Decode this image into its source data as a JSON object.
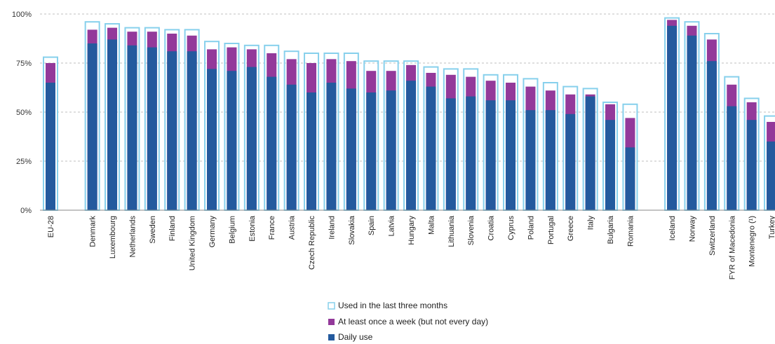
{
  "chart_data": {
    "type": "bar",
    "title": "",
    "xlabel": "",
    "ylabel": "",
    "ylim": [
      0,
      100
    ],
    "yticks": [
      0,
      25,
      50,
      75,
      100
    ],
    "ytick_labels": [
      "0%",
      "25%",
      "50%",
      "75%",
      "100%"
    ],
    "grid": true,
    "legend_position": "bottom-center",
    "colors": {
      "three_months_outline": "#87d0ec",
      "weekly": "#93399a",
      "daily": "#245a9e",
      "grid": "#bfbfbf",
      "axis": "#888888"
    },
    "groups": [
      [
        "EU-28"
      ],
      [
        "Denmark",
        "Luxembourg",
        "Netherlands",
        "Sweden",
        "Finland",
        "United Kingdom",
        "Germany",
        "Belgium",
        "Estonia",
        "France",
        "Austria",
        "Czech Republic",
        "Ireland",
        "Slovakia",
        "Spain",
        "Latvia",
        "Hungary",
        "Malta",
        "Lithuania",
        "Slovenia",
        "Croatia",
        "Cyprus",
        "Poland",
        "Portugal",
        "Greece",
        "Italy",
        "Bulgaria",
        "Romania"
      ],
      [
        "Iceland",
        "Norway",
        "Switzerland",
        "FYR of Macedonia",
        "Montenegro (¹)",
        "Turkey"
      ]
    ],
    "categories": [
      "EU-28",
      "Denmark",
      "Luxembourg",
      "Netherlands",
      "Sweden",
      "Finland",
      "United Kingdom",
      "Germany",
      "Belgium",
      "Estonia",
      "France",
      "Austria",
      "Czech Republic",
      "Ireland",
      "Slovakia",
      "Spain",
      "Latvia",
      "Hungary",
      "Malta",
      "Lithuania",
      "Slovenia",
      "Croatia",
      "Cyprus",
      "Poland",
      "Portugal",
      "Greece",
      "Italy",
      "Bulgaria",
      "Romania",
      "Iceland",
      "Norway",
      "Switzerland",
      "FYR of Macedonia",
      "Montenegro (¹)",
      "Turkey"
    ],
    "series": [
      {
        "name": "Used in the last three months",
        "style": "outline",
        "values": [
          78,
          96,
          95,
          93,
          93,
          92,
          92,
          86,
          85,
          84,
          84,
          81,
          80,
          80,
          80,
          76,
          76,
          76,
          73,
          72,
          72,
          69,
          69,
          67,
          65,
          63,
          62,
          55,
          54,
          98,
          96,
          90,
          68,
          57,
          48
        ]
      },
      {
        "name": "At least once a week (but not every day)",
        "style": "fill",
        "values": [
          75,
          92,
          93,
          91,
          91,
          90,
          89,
          82,
          83,
          82,
          80,
          77,
          75,
          77,
          76,
          71,
          71,
          74,
          70,
          69,
          68,
          66,
          65,
          63,
          61,
          59,
          59,
          54,
          47,
          97,
          94,
          87,
          64,
          55,
          45
        ]
      },
      {
        "name": "Daily use",
        "style": "fill",
        "values": [
          65,
          85,
          87,
          84,
          83,
          81,
          81,
          72,
          71,
          73,
          68,
          64,
          60,
          65,
          62,
          60,
          61,
          66,
          63,
          57,
          58,
          56,
          56,
          51,
          51,
          49,
          58,
          46,
          32,
          94,
          89,
          76,
          53,
          46,
          35
        ]
      }
    ]
  }
}
